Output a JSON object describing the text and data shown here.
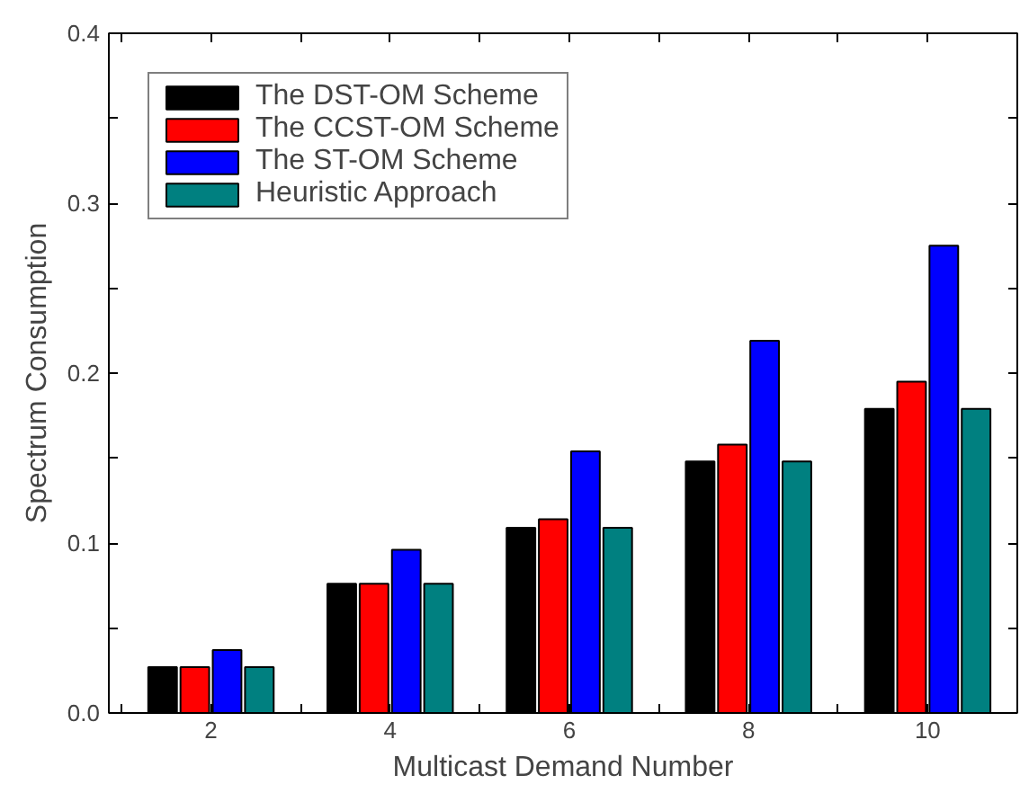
{
  "chart_data": {
    "type": "bar",
    "xlabel": "Multicast Demand Number",
    "ylabel": "Spectrum Consumption",
    "x": [
      2,
      4,
      6,
      8,
      10
    ],
    "series": [
      {
        "name": "The DST-OM Scheme",
        "color": "#000000",
        "values": [
          0.027,
          0.076,
          0.109,
          0.148,
          0.179
        ]
      },
      {
        "name": "The CCST-OM Scheme",
        "color": "#ff0000",
        "values": [
          0.027,
          0.076,
          0.114,
          0.158,
          0.195
        ]
      },
      {
        "name": "The ST-OM Scheme",
        "color": "#0000ff",
        "values": [
          0.037,
          0.096,
          0.154,
          0.219,
          0.275
        ]
      },
      {
        "name": "Heuristic Approach",
        "color": "#008080",
        "values": [
          0.027,
          0.076,
          0.109,
          0.148,
          0.179
        ]
      }
    ],
    "xlim": [
      0.86,
      11
    ],
    "xticks": [
      {
        "value": 1,
        "label": null
      },
      2,
      {
        "value": 3,
        "label": null
      },
      4,
      {
        "value": 5,
        "label": null
      },
      6,
      {
        "value": 7,
        "label": null
      },
      8,
      {
        "value": 9,
        "label": null
      },
      10,
      {
        "value": 11,
        "label": null
      }
    ],
    "ylim": [
      0,
      0.4
    ],
    "yticks": [
      "0.0",
      {
        "value": 0.05,
        "label": null
      },
      0.1,
      {
        "value": 0.15,
        "label": null
      },
      0.2,
      {
        "value": 0.25,
        "label": null
      },
      0.3,
      {
        "value": 0.35,
        "label": null
      },
      0.4
    ],
    "grid": false,
    "legend": "top left"
  }
}
